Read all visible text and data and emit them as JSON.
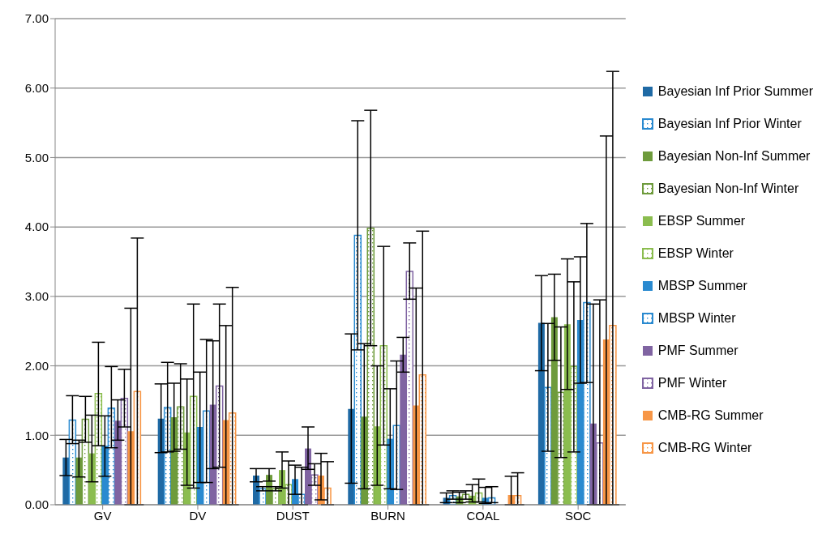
{
  "chart_data": {
    "type": "bar",
    "categories": [
      "GV",
      "DV",
      "DUST",
      "BURN",
      "COAL",
      "SOC"
    ],
    "ylim": [
      0,
      7
    ],
    "yticks": [
      {
        "value": 0,
        "label": "0.00"
      },
      {
        "value": 1,
        "label": "1.00"
      },
      {
        "value": 2,
        "label": "2.00"
      },
      {
        "value": 3,
        "label": "3.00"
      },
      {
        "value": 4,
        "label": "4.00"
      },
      {
        "value": 5,
        "label": "5.00"
      },
      {
        "value": 6,
        "label": "6.00"
      },
      {
        "value": 7,
        "label": "7.00"
      }
    ],
    "grid": "y",
    "legend": "right",
    "series": [
      {
        "name": "Bayesian Inf Prior Summer",
        "color": "#1f6aa5",
        "values": [
          0.68,
          1.24,
          0.42,
          1.38,
          0.1,
          2.62
        ],
        "errors": [
          [
            0.42,
            0.94
          ],
          [
            0.75,
            1.74
          ],
          [
            0.33,
            0.52
          ],
          [
            0.31,
            2.46
          ],
          [
            0.03,
            0.17
          ],
          [
            1.93,
            3.3
          ]
        ]
      },
      {
        "name": "Bayesian Inf Prior Winter",
        "color": "#2a8ad0",
        "values": [
          1.22,
          1.4,
          0.23,
          3.88,
          0.13,
          1.69
        ],
        "errors": [
          [
            0.88,
            1.57
          ],
          [
            0.76,
            2.05
          ],
          [
            0.2,
            0.26
          ],
          [
            2.23,
            5.53
          ],
          [
            0.08,
            0.2
          ],
          [
            0.77,
            2.61
          ]
        ]
      },
      {
        "name": "Bayesian Non-Inf Summer",
        "color": "#6e9b3c",
        "values": [
          0.68,
          1.26,
          0.43,
          1.27,
          0.12,
          2.7
        ],
        "errors": [
          [
            0.4,
            0.93
          ],
          [
            0.77,
            1.75
          ],
          [
            0.34,
            0.52
          ],
          [
            0.23,
            2.32
          ],
          [
            0.03,
            0.18
          ],
          [
            2.08,
            3.32
          ]
        ]
      },
      {
        "name": "Bayesian Non-Inf Winter",
        "color": "#6e9b3c",
        "values": [
          1.23,
          1.41,
          0.23,
          3.98,
          0.15,
          1.62
        ],
        "errors": [
          [
            0.9,
            1.56
          ],
          [
            0.8,
            2.03
          ],
          [
            0.2,
            0.26
          ],
          [
            2.29,
            5.68
          ],
          [
            0.08,
            0.2
          ],
          [
            0.68,
            2.56
          ]
        ]
      },
      {
        "name": "EBSP Summer",
        "color": "#8bbd4f",
        "values": [
          0.74,
          1.04,
          0.5,
          1.13,
          0.13,
          2.6
        ],
        "errors": [
          [
            0.33,
            1.29
          ],
          [
            0.28,
            1.81
          ],
          [
            0.24,
            0.76
          ],
          [
            0.28,
            2.0
          ],
          [
            0.04,
            0.29
          ],
          [
            1.66,
            3.54
          ]
        ]
      },
      {
        "name": "EBSP Winter",
        "color": "#8bbd4f",
        "values": [
          1.6,
          1.56,
          0.29,
          2.29,
          0.17,
          1.99
        ],
        "errors": [
          [
            0.85,
            2.34
          ],
          [
            0.24,
            2.89
          ],
          [
            0,
            0.63
          ],
          [
            0.86,
            3.72
          ],
          [
            0.04,
            0.37
          ],
          [
            0.76,
            3.21
          ]
        ]
      },
      {
        "name": "MBSP Summer",
        "color": "#2a8ad0",
        "values": [
          0.85,
          1.12,
          0.37,
          0.95,
          0.1,
          2.66
        ],
        "errors": [
          [
            0.41,
            1.28
          ],
          [
            0.32,
            1.91
          ],
          [
            0.15,
            0.57
          ],
          [
            0.23,
            1.67
          ],
          [
            0.02,
            0.25
          ],
          [
            1.75,
            3.57
          ]
        ]
      },
      {
        "name": "MBSP Winter",
        "color": "#2a8ad0",
        "values": [
          1.39,
          1.35,
          0.15,
          1.14,
          0.1,
          2.91
        ],
        "errors": [
          [
            0.82,
            1.99
          ],
          [
            0.32,
            2.38
          ],
          [
            0,
            0.54
          ],
          [
            0.22,
            2.07
          ],
          [
            0.03,
            0.26
          ],
          [
            1.76,
            4.05
          ]
        ]
      },
      {
        "name": "PMF Summer",
        "color": "#8064a2",
        "values": [
          1.21,
          1.44,
          0.81,
          2.16,
          null,
          1.17
        ],
        "errors": [
          [
            0.93,
            1.51
          ],
          [
            0.52,
            2.36
          ],
          [
            0.51,
            1.12
          ],
          [
            1.91,
            2.41
          ],
          null,
          [
            0,
            2.89
          ]
        ]
      },
      {
        "name": "PMF Winter",
        "color": "#8064a2",
        "values": [
          1.53,
          1.71,
          0.43,
          3.36,
          null,
          0.89
        ],
        "errors": [
          [
            1.12,
            1.95
          ],
          [
            0.54,
            2.89
          ],
          [
            0.28,
            0.59
          ],
          [
            2.96,
            3.77
          ],
          null,
          [
            0,
            2.95
          ]
        ]
      },
      {
        "name": "CMB-RG Summer",
        "color": "#f79646",
        "values": [
          1.06,
          1.22,
          0.42,
          1.43,
          0.14,
          2.38
        ],
        "errors": [
          [
            0,
            2.83
          ],
          [
            0,
            2.58
          ],
          [
            0.07,
            0.74
          ],
          [
            0,
            3.12
          ],
          [
            0,
            0.41
          ],
          [
            0,
            5.31
          ]
        ]
      },
      {
        "name": "CMB-RG Winter",
        "color": "#f79646",
        "values": [
          1.63,
          1.32,
          0.24,
          1.87,
          0.13,
          2.58
        ],
        "errors": [
          [
            0,
            3.84
          ],
          [
            0,
            3.13
          ],
          [
            0,
            0.62
          ],
          [
            0,
            3.94
          ],
          [
            0,
            0.46
          ],
          [
            0,
            6.24
          ]
        ]
      }
    ]
  }
}
